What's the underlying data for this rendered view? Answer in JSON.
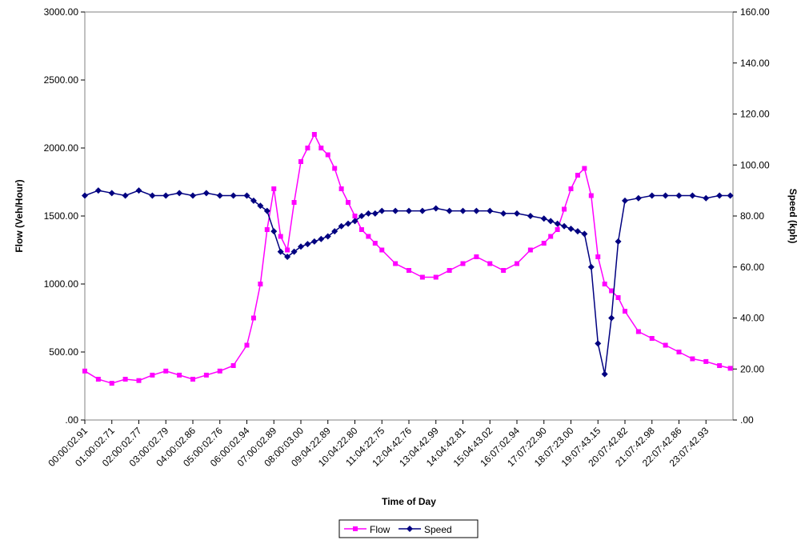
{
  "chart_data": {
    "type": "line",
    "title": "",
    "xlabel": "Time of Day",
    "ylabel": "Flow (Veh/Hour)",
    "y2label": "Speed (kph)",
    "ylim": [
      0,
      3000
    ],
    "y2lim": [
      0,
      160
    ],
    "y_ticks": [
      ".00",
      "500.00",
      "1000.00",
      "1500.00",
      "2000.00",
      "2500.00",
      "3000.00"
    ],
    "y2_ticks": [
      ".00",
      "20.00",
      "40.00",
      "60.00",
      "80.00",
      "100.00",
      "120.00",
      "140.00",
      "160.00"
    ],
    "x_tick_labels": [
      "00:00:02.91",
      "01:00:02.71",
      "02:00:02.77",
      "03:00:02.79",
      "04:00:02.86",
      "05:00:02.76",
      "06:00:02.94",
      "07:00:02.89",
      "08:00:03.00",
      "09:04:22.89",
      "10:04:22.80",
      "11:04:22.75",
      "12:04:42.76",
      "13:04:42.99",
      "14:04:42.81",
      "15:04:43.02",
      "16:07:02.94",
      "17:07:22.90",
      "18:07:23.00",
      "19:07:43.15",
      "20:07:42.82",
      "21:07:42.98",
      "22:07:42.86",
      "23:07:42.93"
    ],
    "legend_position": "bottom-center",
    "grid": false,
    "series": [
      {
        "name": "Flow",
        "axis": "left",
        "color": "#ff00ff",
        "marker": "square",
        "x_hours": [
          0,
          0.5,
          1,
          1.5,
          2,
          2.5,
          3,
          3.5,
          4,
          4.5,
          5,
          5.5,
          6,
          6.25,
          6.5,
          6.75,
          7,
          7.25,
          7.5,
          7.75,
          8,
          8.25,
          8.5,
          8.75,
          9,
          9.25,
          9.5,
          9.75,
          10,
          10.25,
          10.5,
          10.75,
          11,
          11.5,
          12,
          12.5,
          13,
          13.5,
          14,
          14.5,
          15,
          15.5,
          16,
          16.5,
          17,
          17.25,
          17.5,
          17.75,
          18,
          18.25,
          18.5,
          18.75,
          19,
          19.25,
          19.5,
          19.75,
          20,
          20.5,
          21,
          21.5,
          22,
          22.5,
          23,
          23.5,
          23.9
        ],
        "values": [
          360,
          300,
          270,
          300,
          290,
          330,
          360,
          330,
          300,
          330,
          360,
          400,
          550,
          750,
          1000,
          1400,
          1700,
          1350,
          1250,
          1600,
          1900,
          2000,
          2100,
          2000,
          1950,
          1850,
          1700,
          1600,
          1500,
          1400,
          1350,
          1300,
          1250,
          1150,
          1100,
          1050,
          1050,
          1100,
          1150,
          1200,
          1150,
          1100,
          1150,
          1250,
          1300,
          1350,
          1400,
          1550,
          1700,
          1800,
          1850,
          1650,
          1200,
          1000,
          950,
          900,
          800,
          650,
          600,
          550,
          500,
          450,
          430,
          400,
          380
        ]
      },
      {
        "name": "Speed",
        "axis": "right",
        "color": "#000080",
        "marker": "diamond",
        "x_hours": [
          0,
          0.5,
          1,
          1.5,
          2,
          2.5,
          3,
          3.5,
          4,
          4.5,
          5,
          5.5,
          6,
          6.25,
          6.5,
          6.75,
          7,
          7.25,
          7.5,
          7.75,
          8,
          8.25,
          8.5,
          8.75,
          9,
          9.25,
          9.5,
          9.75,
          10,
          10.25,
          10.5,
          10.75,
          11,
          11.5,
          12,
          12.5,
          13,
          13.5,
          14,
          14.5,
          15,
          15.5,
          16,
          16.5,
          17,
          17.25,
          17.5,
          17.75,
          18,
          18.25,
          18.5,
          18.75,
          19,
          19.25,
          19.5,
          19.75,
          20,
          20.5,
          21,
          21.5,
          22,
          22.5,
          23,
          23.5,
          23.9
        ],
        "values": [
          88,
          90,
          89,
          88,
          90,
          88,
          88,
          89,
          88,
          89,
          88,
          88,
          88,
          86,
          84,
          82,
          74,
          66,
          64,
          66,
          68,
          69,
          70,
          71,
          72,
          74,
          76,
          77,
          78,
          80,
          81,
          81,
          82,
          82,
          82,
          82,
          83,
          82,
          82,
          82,
          82,
          81,
          81,
          80,
          79,
          78,
          77,
          76,
          75,
          74,
          73,
          60,
          30,
          18,
          40,
          70,
          86,
          87,
          88,
          88,
          88,
          88,
          87,
          88,
          88
        ]
      }
    ]
  }
}
